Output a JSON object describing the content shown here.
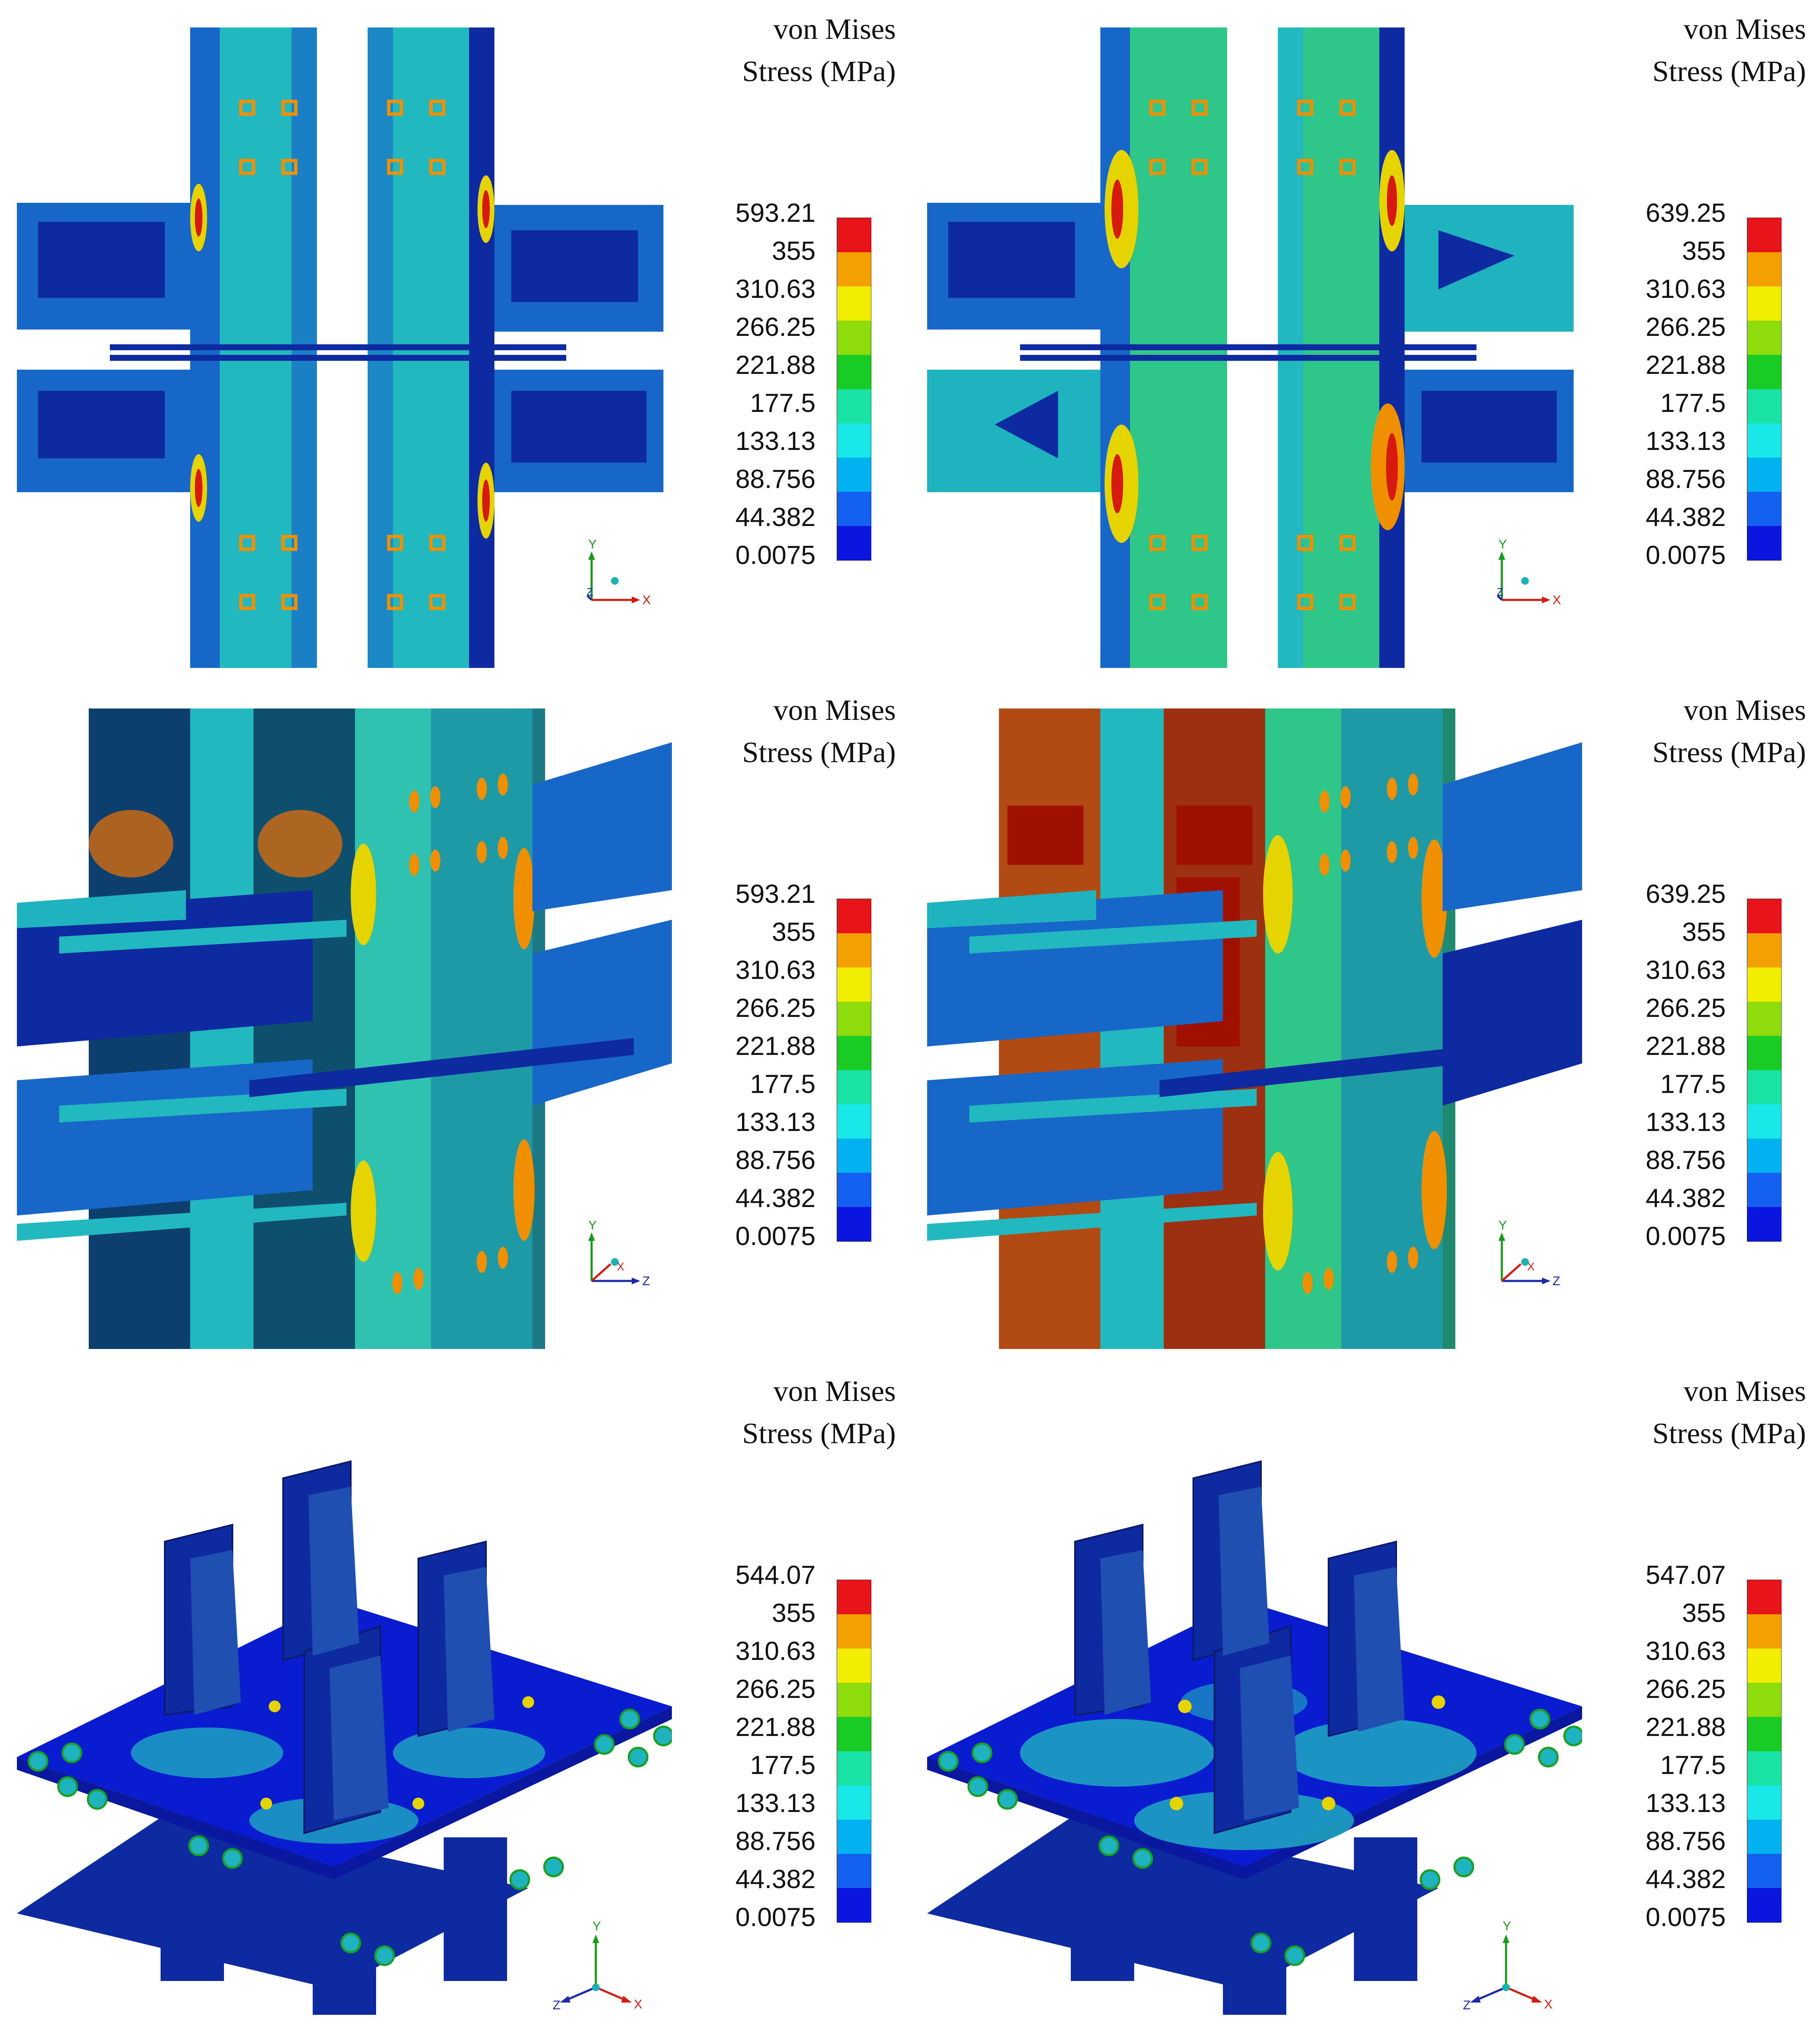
{
  "panels": [
    {
      "id": "top-left",
      "legend_title_1": "von Mises",
      "legend_title_2": "Stress (MPa)",
      "legend_values": [
        "593.21",
        "355",
        "310.63",
        "266.25",
        "221.88",
        "177.5",
        "133.13",
        "88.756",
        "44.382",
        "0.0075"
      ],
      "axes": {
        "vertical": "Y",
        "horizontal": "X",
        "third": "Z"
      }
    },
    {
      "id": "top-right",
      "legend_title_1": "von Mises",
      "legend_title_2": "Stress (MPa)",
      "legend_values": [
        "639.25",
        "355",
        "310.63",
        "266.25",
        "221.88",
        "177.5",
        "133.13",
        "88.756",
        "44.382",
        "0.0075"
      ],
      "axes": {
        "vertical": "Y",
        "horizontal": "X",
        "third": "Z"
      }
    },
    {
      "id": "middle-left",
      "legend_title_1": "von Mises",
      "legend_title_2": "Stress (MPa)",
      "legend_values": [
        "593.21",
        "355",
        "310.63",
        "266.25",
        "221.88",
        "177.5",
        "133.13",
        "88.756",
        "44.382",
        "0.0075"
      ],
      "axes": {
        "vertical": "Y",
        "horizontal": "Z",
        "third": "X"
      }
    },
    {
      "id": "middle-right",
      "legend_title_1": "von Mises",
      "legend_title_2": "Stress (MPa)",
      "legend_values": [
        "639.25",
        "355",
        "310.63",
        "266.25",
        "221.88",
        "177.5",
        "133.13",
        "88.756",
        "44.382",
        "0.0075"
      ],
      "axes": {
        "vertical": "Y",
        "horizontal": "Z",
        "third": "X"
      }
    },
    {
      "id": "bottom-left",
      "legend_title_1": "von Mises",
      "legend_title_2": "Stress (MPa)",
      "legend_values": [
        "544.07",
        "355",
        "310.63",
        "266.25",
        "221.88",
        "177.5",
        "133.13",
        "88.756",
        "44.382",
        "0.0075"
      ],
      "axes": {
        "vertical": "Y",
        "horizontal": "X",
        "third": "Z"
      }
    },
    {
      "id": "bottom-right",
      "legend_title_1": "von Mises",
      "legend_title_2": "Stress (MPa)",
      "legend_values": [
        "547.07",
        "355",
        "310.63",
        "266.25",
        "221.88",
        "177.5",
        "133.13",
        "88.756",
        "44.382",
        "0.0075"
      ],
      "axes": {
        "vertical": "Y",
        "horizontal": "X",
        "third": "Z"
      }
    }
  ],
  "color_scale": [
    "#e8141a",
    "#f4a100",
    "#f2ee00",
    "#8fdc0c",
    "#19cc23",
    "#19e3a4",
    "#19e8e8",
    "#00b3f0",
    "#1460f0",
    "#0a16e0"
  ],
  "model_colors": {
    "dark_blue": "#0a1c8a",
    "mid_blue": "#1657c8",
    "cyan": "#1fc3c4",
    "teal": "#2ea6a0",
    "green": "#3bbf3b",
    "yellow": "#e6d400",
    "orange": "#f09000",
    "red": "#d61a10",
    "navy": "#0a1a6e"
  }
}
